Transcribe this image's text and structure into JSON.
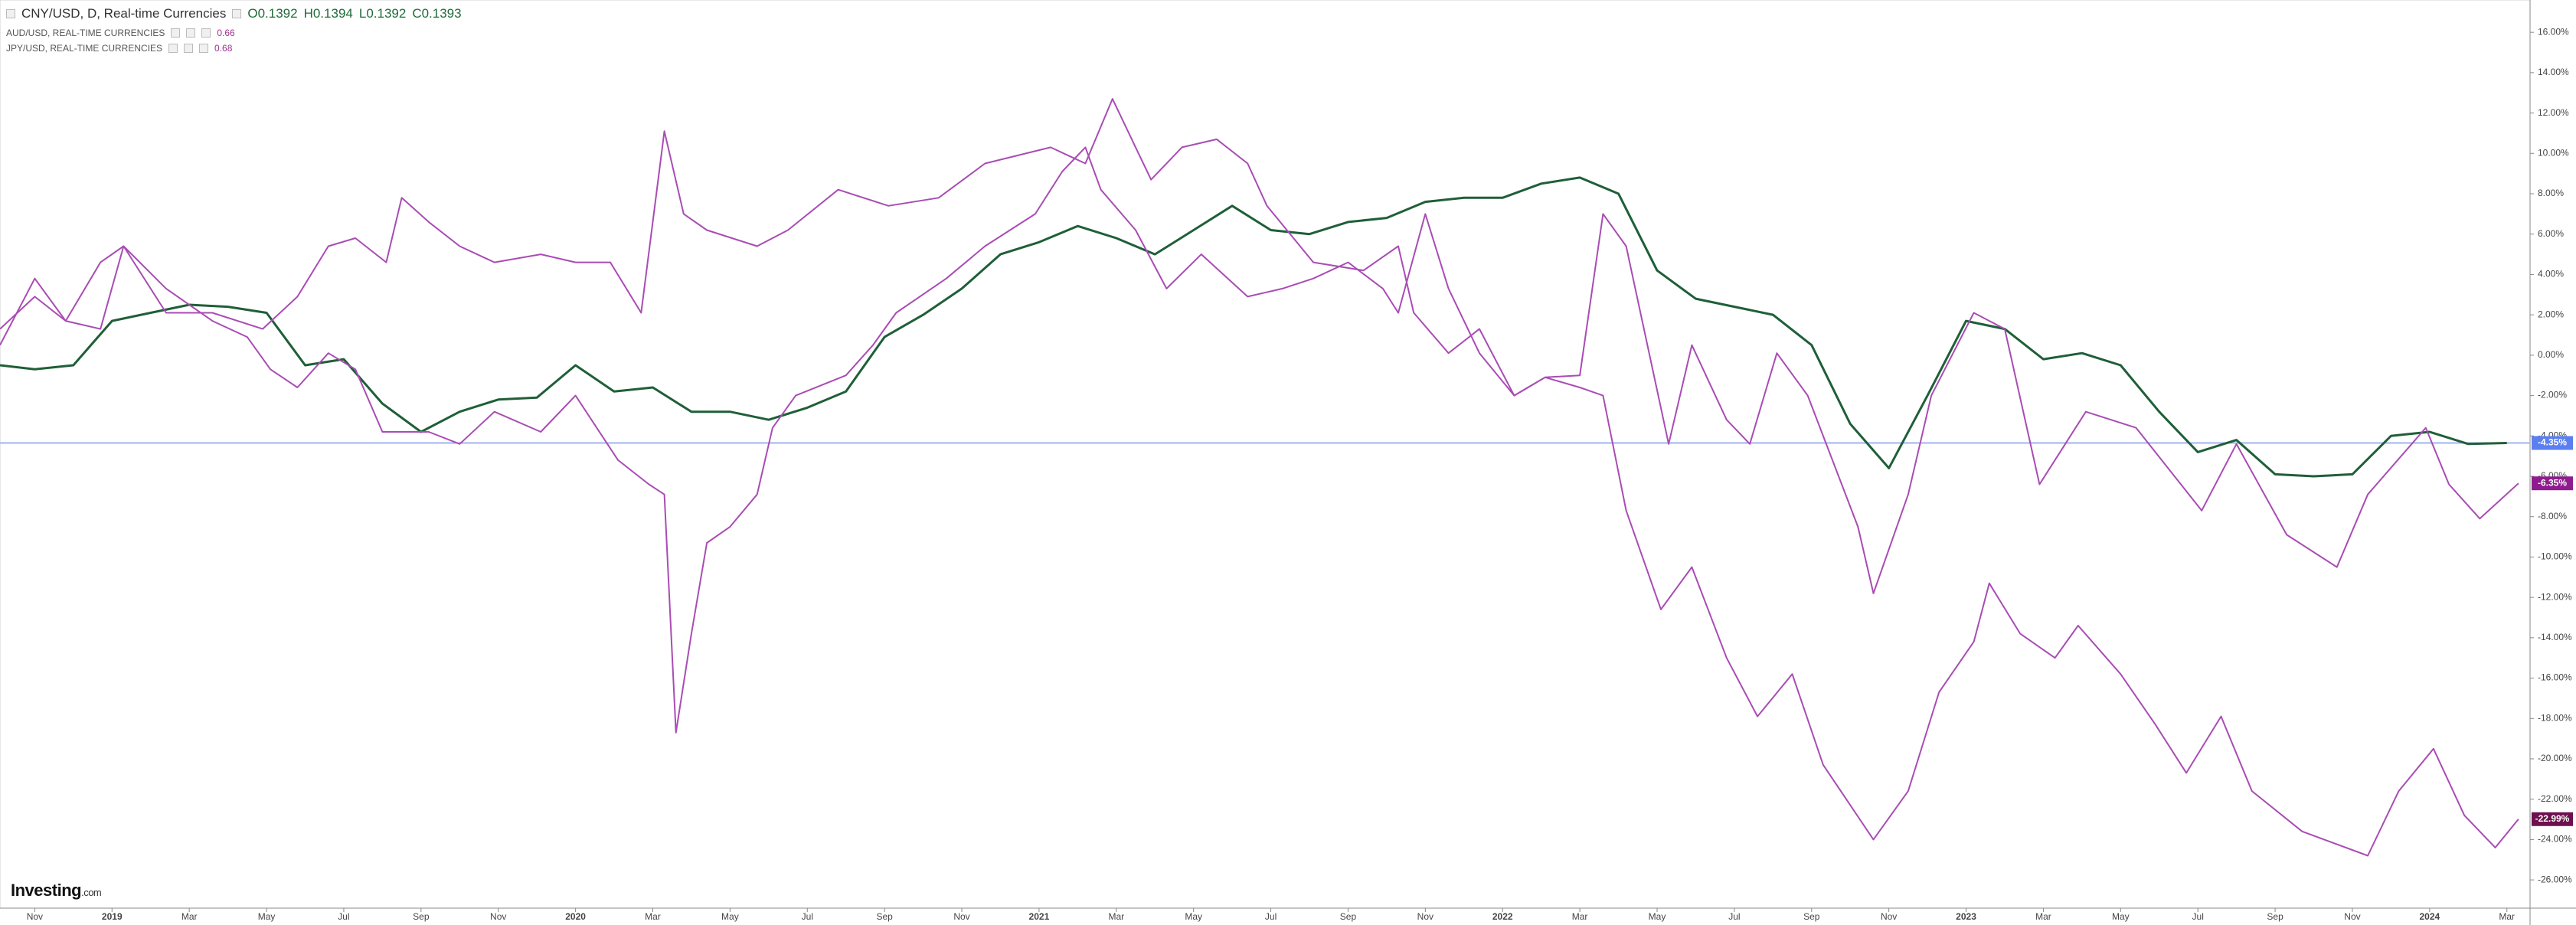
{
  "chart_data": {
    "type": "line",
    "logo": {
      "main": "Investing",
      "suffix": ".com"
    },
    "xlim": [
      -0.9,
      64.6
    ],
    "ylim": [
      -27.4,
      17.6
    ],
    "grid": false,
    "xticks": [
      {
        "value": 0,
        "label": "Nov"
      },
      {
        "value": 2,
        "label": "2019"
      },
      {
        "value": 4,
        "label": "Mar"
      },
      {
        "value": 6,
        "label": "May"
      },
      {
        "value": 8,
        "label": "Jul"
      },
      {
        "value": 10,
        "label": "Sep"
      },
      {
        "value": 12,
        "label": "Nov"
      },
      {
        "value": 14,
        "label": "2020"
      },
      {
        "value": 16,
        "label": "Mar"
      },
      {
        "value": 18,
        "label": "May"
      },
      {
        "value": 20,
        "label": "Jul"
      },
      {
        "value": 22,
        "label": "Sep"
      },
      {
        "value": 24,
        "label": "Nov"
      },
      {
        "value": 26,
        "label": "2021"
      },
      {
        "value": 28,
        "label": "Mar"
      },
      {
        "value": 30,
        "label": "May"
      },
      {
        "value": 32,
        "label": "Jul"
      },
      {
        "value": 34,
        "label": "Sep"
      },
      {
        "value": 36,
        "label": "Nov"
      },
      {
        "value": 38,
        "label": "2022"
      },
      {
        "value": 40,
        "label": "Mar"
      },
      {
        "value": 42,
        "label": "May"
      },
      {
        "value": 44,
        "label": "Jul"
      },
      {
        "value": 46,
        "label": "Sep"
      },
      {
        "value": 48,
        "label": "Nov"
      },
      {
        "value": 50,
        "label": "2023"
      },
      {
        "value": 52,
        "label": "Mar"
      },
      {
        "value": 54,
        "label": "May"
      },
      {
        "value": 56,
        "label": "Jul"
      },
      {
        "value": 58,
        "label": "Sep"
      },
      {
        "value": 60,
        "label": "Nov"
      },
      {
        "value": 62,
        "label": "2024"
      },
      {
        "value": 64,
        "label": "Mar"
      }
    ],
    "yticks": [
      {
        "value": 16,
        "label": "16.00%"
      },
      {
        "value": 14,
        "label": "14.00%"
      },
      {
        "value": 12,
        "label": "12.00%"
      },
      {
        "value": 10,
        "label": "10.00%"
      },
      {
        "value": 8,
        "label": "8.00%"
      },
      {
        "value": 6,
        "label": "6.00%"
      },
      {
        "value": 4,
        "label": "4.00%"
      },
      {
        "value": 2,
        "label": "2.00%"
      },
      {
        "value": 0,
        "label": "0.00%"
      },
      {
        "value": -2,
        "label": "-2.00%"
      },
      {
        "value": -4,
        "label": "-4.00%"
      },
      {
        "value": -6,
        "label": "-6.00%"
      },
      {
        "value": -8,
        "label": "-8.00%"
      },
      {
        "value": -10,
        "label": "-10.00%"
      },
      {
        "value": -12,
        "label": "-12.00%"
      },
      {
        "value": -14,
        "label": "-14.00%"
      },
      {
        "value": -16,
        "label": "-16.00%"
      },
      {
        "value": -18,
        "label": "-18.00%"
      },
      {
        "value": -20,
        "label": "-20.00%"
      },
      {
        "value": -22,
        "label": "-22.00%"
      },
      {
        "value": -24,
        "label": "-24.00%"
      },
      {
        "value": -26,
        "label": "-26.00%"
      }
    ],
    "series": [
      {
        "name": "CNY/USD, D, Real-time Currencies",
        "color": "#1f5f38",
        "badge_color": "#5b7ff0",
        "price_line": true,
        "ohlc_labels": [
          "O0.1392",
          "H0.1394",
          "L0.1392",
          "C0.1393"
        ],
        "last_value_label": "-4.35%",
        "x": [
          -0.9,
          0,
          1,
          2,
          3,
          4,
          5,
          6,
          7,
          8,
          9,
          10,
          11,
          12,
          13,
          14,
          15,
          16,
          17,
          18,
          19,
          20,
          21,
          22,
          23,
          24,
          25,
          26,
          27,
          28,
          29,
          30,
          31,
          32,
          33,
          34,
          35,
          36,
          37,
          38,
          39,
          40,
          41,
          42,
          43,
          44,
          45,
          46,
          47,
          48,
          49,
          50,
          51,
          52,
          53,
          54,
          55,
          56,
          57,
          58,
          59,
          60,
          61,
          62,
          63,
          64
        ],
        "values": [
          -0.5,
          -0.7,
          -0.5,
          1.7,
          2.1,
          2.5,
          2.4,
          2.1,
          -0.5,
          -0.2,
          -2.4,
          -3.8,
          -2.8,
          -2.2,
          -2.1,
          -0.5,
          -1.8,
          -1.6,
          -2.8,
          -2.8,
          -3.2,
          -2.6,
          -1.8,
          0.9,
          2.0,
          3.3,
          5.0,
          5.6,
          6.4,
          5.8,
          5.0,
          6.2,
          7.4,
          6.2,
          6.0,
          6.6,
          6.8,
          7.6,
          7.8,
          7.8,
          8.5,
          8.8,
          8.0,
          4.2,
          2.8,
          2.4,
          2.0,
          0.5,
          -3.4,
          -5.6,
          -2.0,
          1.7,
          1.3,
          -0.2,
          0.1,
          -0.5,
          -2.8,
          -4.8,
          -4.2,
          -5.9,
          -6.0,
          -5.9,
          -4.0,
          -3.8,
          -4.4,
          -4.35
        ]
      },
      {
        "name": "AUD/USD, REAL-TIME CURRENCIES",
        "color": "#a94cb4",
        "badge_color": "#8e1c8e",
        "last_price": 0.66,
        "last_value_label": "-6.35%",
        "x": [
          -0.9,
          0,
          0.8,
          1.7,
          2.3,
          3.4,
          4.6,
          5.5,
          6.1,
          6.8,
          7.6,
          8.3,
          9.0,
          10.2,
          11.0,
          11.9,
          13.1,
          14.0,
          15.1,
          15.9,
          16.3,
          16.6,
          17.0,
          17.4,
          18.0,
          18.7,
          19.1,
          19.7,
          21.0,
          21.7,
          22.3,
          23.6,
          24.6,
          25.9,
          26.6,
          27.2,
          27.6,
          28.5,
          29.3,
          30.2,
          31.4,
          32.3,
          33.1,
          34.0,
          34.9,
          35.3,
          36.0,
          36.6,
          37.4,
          38.3,
          39.1,
          40.0,
          40.6,
          41.2,
          42.3,
          42.9,
          43.8,
          44.4,
          45.1,
          45.9,
          47.2,
          47.6,
          48.5,
          49.1,
          50.2,
          51.0,
          51.9,
          53.1,
          54.4,
          56.1,
          57.0,
          58.3,
          59.6,
          60.4,
          61.9,
          62.5,
          63.3,
          64.3
        ],
        "values": [
          1.3,
          2.9,
          1.7,
          4.6,
          5.4,
          3.3,
          1.7,
          0.9,
          -0.7,
          -1.6,
          0.1,
          -0.7,
          -3.8,
          -3.8,
          -4.4,
          -2.8,
          -3.8,
          -2.0,
          -5.2,
          -6.4,
          -6.9,
          -18.7,
          -13.8,
          -9.3,
          -8.5,
          -6.9,
          -3.6,
          -2.0,
          -1.0,
          0.5,
          2.1,
          3.8,
          5.4,
          7.0,
          9.1,
          10.3,
          8.2,
          6.2,
          3.3,
          5.0,
          2.9,
          3.3,
          3.8,
          4.6,
          3.3,
          2.1,
          7.0,
          3.3,
          0.1,
          -2.0,
          -1.1,
          -1.0,
          7.0,
          5.4,
          -4.4,
          0.5,
          -3.2,
          -4.4,
          0.1,
          -2.0,
          -8.5,
          -11.8,
          -6.9,
          -2.0,
          2.1,
          1.3,
          -6.4,
          -2.8,
          -3.6,
          -7.7,
          -4.4,
          -8.9,
          -10.5,
          -6.9,
          -3.6,
          -6.4,
          -8.1,
          -6.35
        ]
      },
      {
        "name": "JPY/USD, REAL-TIME CURRENCIES",
        "color": "#a94cb4",
        "badge_color": "#6e0f4e",
        "last_price": 0.68,
        "last_value_label": "-22.99%",
        "x": [
          -0.9,
          0,
          0.8,
          1.7,
          2.3,
          3.4,
          4.6,
          5.9,
          6.8,
          7.6,
          8.3,
          9.1,
          9.5,
          10.2,
          11.0,
          11.9,
          13.1,
          14.0,
          14.9,
          15.7,
          16.3,
          16.8,
          17.4,
          18.7,
          19.5,
          20.8,
          22.1,
          23.4,
          24.6,
          26.3,
          27.2,
          27.9,
          28.5,
          28.9,
          29.7,
          30.6,
          31.4,
          31.9,
          33.1,
          34.4,
          35.3,
          35.7,
          36.6,
          37.4,
          38.3,
          39.1,
          40.0,
          40.6,
          41.2,
          42.1,
          42.9,
          43.8,
          44.6,
          45.5,
          46.3,
          47.6,
          48.5,
          49.3,
          50.2,
          50.6,
          51.4,
          52.3,
          52.9,
          54.0,
          54.9,
          55.7,
          56.6,
          57.4,
          58.7,
          60.4,
          61.2,
          62.1,
          62.9,
          63.7,
          64.3
        ],
        "values": [
          0.5,
          3.8,
          1.7,
          1.3,
          5.4,
          2.1,
          2.1,
          1.3,
          2.9,
          5.4,
          5.8,
          4.6,
          7.8,
          6.6,
          5.4,
          4.6,
          5.0,
          4.6,
          4.6,
          2.1,
          11.1,
          7.0,
          6.2,
          5.4,
          6.2,
          8.2,
          7.4,
          7.8,
          9.5,
          10.3,
          9.5,
          12.7,
          10.3,
          8.7,
          10.3,
          10.7,
          9.5,
          7.4,
          4.6,
          4.2,
          5.4,
          2.1,
          0.1,
          1.3,
          -2.0,
          -1.1,
          -1.6,
          -2.0,
          -7.7,
          -12.6,
          -10.5,
          -15.0,
          -17.9,
          -15.8,
          -20.3,
          -24.0,
          -21.6,
          -16.7,
          -14.2,
          -11.3,
          -13.8,
          -15.0,
          -13.4,
          -15.8,
          -18.3,
          -20.7,
          -17.9,
          -21.6,
          -23.6,
          -24.8,
          -21.6,
          -19.5,
          -22.8,
          -24.4,
          -22.99
        ]
      }
    ]
  }
}
